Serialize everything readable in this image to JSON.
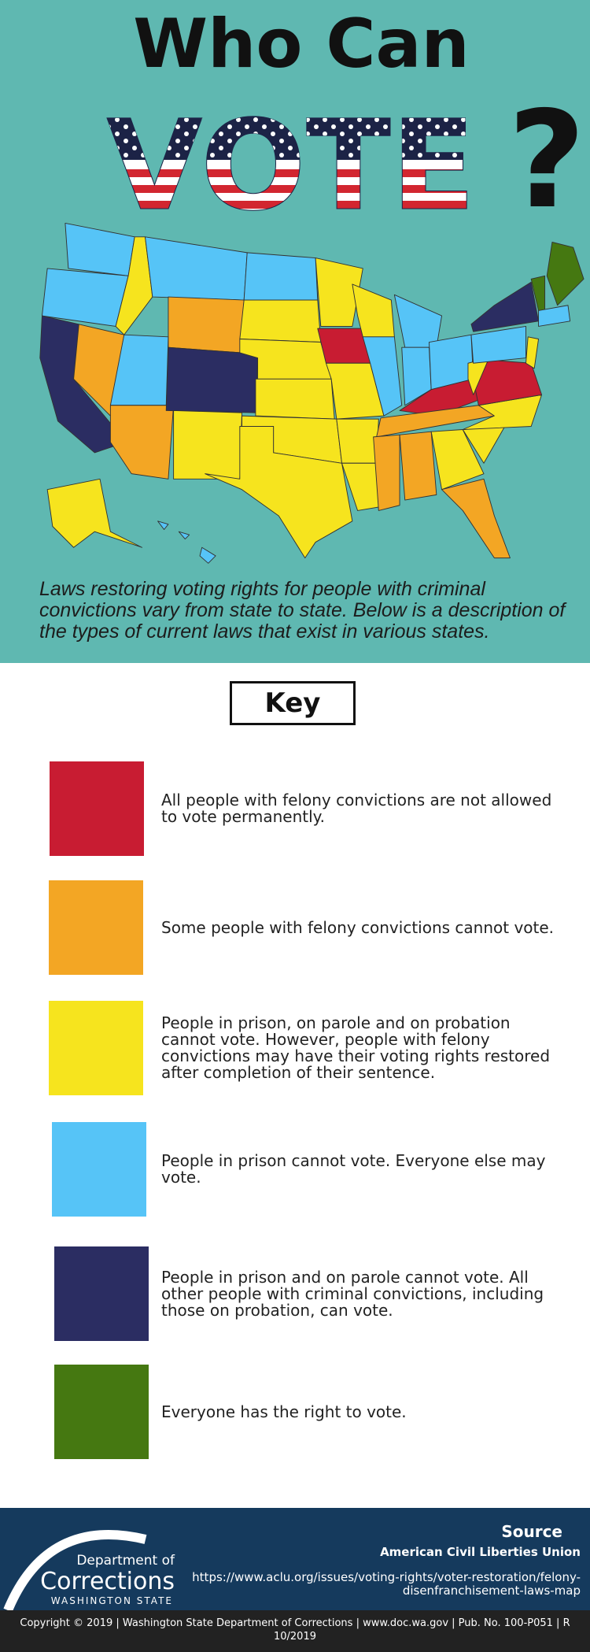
{
  "header": {
    "title_line1": "Who Can",
    "title_line2": "VOTE",
    "title_mark": "?"
  },
  "intro": "Laws restoring voting rights for people with criminal convictions vary from state to state. Below is a description of the types of current laws that exist in various states.",
  "key": {
    "title": "Key",
    "items": [
      {
        "color": "#c81c32",
        "text": "All people with felony convictions are not allowed to vote permanently."
      },
      {
        "color": "#f3a624",
        "text": "Some people with felony convictions cannot vote."
      },
      {
        "color": "#f6e41e",
        "text": "People in prison, on parole and on probation cannot vote. However, people with felony convictions may have their voting rights restored after completion of their sentence."
      },
      {
        "color": "#56c4f7",
        "text": "People in prison cannot vote. Everyone else may vote."
      },
      {
        "color": "#2b2d62",
        "text": "People in prison and on parole cannot vote. All other people with criminal convictions, including those on probation, can vote."
      },
      {
        "color": "#457811",
        "text": "Everyone has the right to vote."
      }
    ]
  },
  "footer": {
    "logo": {
      "line1": "Department of",
      "line2": "Corrections",
      "line3": "WASHINGTON STATE"
    },
    "source": {
      "heading": "Source",
      "org": "American Civil Liberties Union",
      "url": "https://www.aclu.org/issues/voting-rights/voter-restoration/felony-disenfranchisement-laws-map"
    },
    "copyright": "Copyright © 2019 | Washington State Department of Corrections | www.doc.wa.gov | Pub. No. 100-P051 | R 10/2019"
  }
}
